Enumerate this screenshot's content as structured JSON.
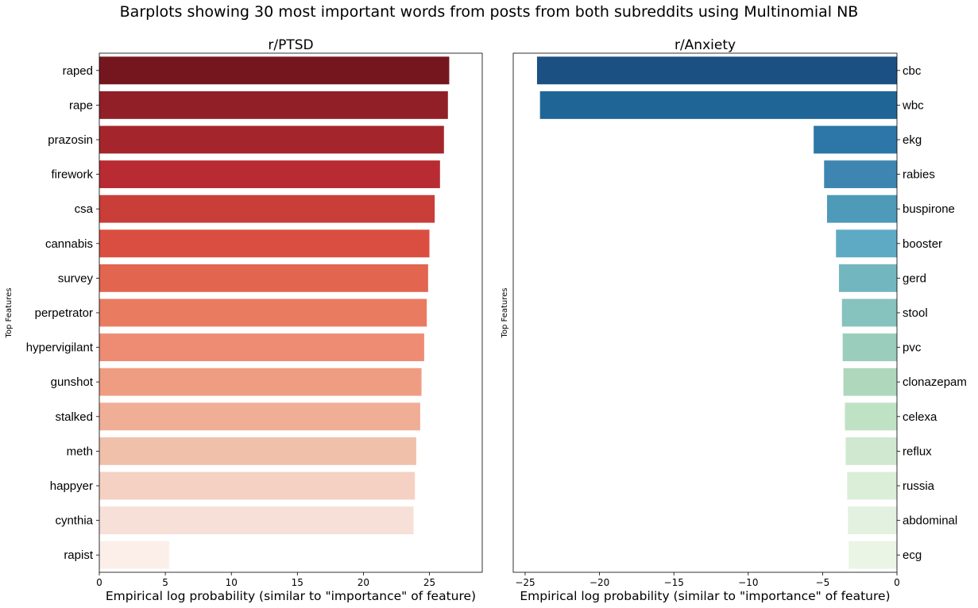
{
  "figure": {
    "suptitle": "Barplots showing 30 most important words from posts from both subreddits using Multinomial NB"
  },
  "chart_data": [
    {
      "type": "bar",
      "orientation": "horizontal",
      "title": "r/PTSD",
      "xlabel": "Empirical log probability (similar to \"importance\" of feature)",
      "ylabel": "Top Features",
      "xlim": [
        0,
        29
      ],
      "xticks": [
        0,
        5,
        10,
        15,
        20,
        25
      ],
      "xtick_labels": [
        "0",
        "5",
        "10",
        "15",
        "20",
        "25"
      ],
      "ytick_side": "left",
      "categories": [
        "raped",
        "rape",
        "prazosin",
        "firework",
        "csa",
        "cannabis",
        "survey",
        "perpetrator",
        "hypervigilant",
        "gunshot",
        "stalked",
        "meth",
        "happyer",
        "cynthia",
        "rapist"
      ],
      "values": [
        26.5,
        26.4,
        26.1,
        25.8,
        25.4,
        25.0,
        24.9,
        24.8,
        24.6,
        24.4,
        24.3,
        24.0,
        23.9,
        23.8,
        5.3
      ],
      "colors": [
        "#75161f",
        "#911f27",
        "#a4262c",
        "#b92b32",
        "#c93e39",
        "#da4e42",
        "#e2654f",
        "#e97b61",
        "#ed8c73",
        "#ef9d82",
        "#f0ae96",
        "#f1c0ab",
        "#f5d1c3",
        "#f7e0d8",
        "#fcefe9"
      ],
      "grid": false
    },
    {
      "type": "bar",
      "orientation": "horizontal",
      "title": "r/Anxiety",
      "xlabel": "Empirical log probability (similar to \"importance\" of feature)",
      "ylabel": "Top Features",
      "xlim": [
        -25.8,
        0
      ],
      "xticks": [
        -25,
        -20,
        -15,
        -10,
        -5,
        0
      ],
      "xtick_labels": [
        "−25",
        "−20",
        "−15",
        "−10",
        "−5",
        "0"
      ],
      "ytick_side": "right",
      "categories": [
        "cbc",
        "wbc",
        "ekg",
        "rabies",
        "buspirone",
        "booster",
        "gerd",
        "stool",
        "pvc",
        "clonazepam",
        "celexa",
        "reflux",
        "russia",
        "abdominal",
        "ecg"
      ],
      "values": [
        -24.2,
        -24.0,
        -5.6,
        -4.9,
        -4.7,
        -4.1,
        -3.9,
        -3.7,
        -3.65,
        -3.6,
        -3.5,
        -3.45,
        -3.35,
        -3.3,
        -3.25
      ],
      "colors": [
        "#1b5082",
        "#1f6697",
        "#2c76a8",
        "#3e86b1",
        "#4d9ab9",
        "#5eaac5",
        "#72b7bf",
        "#86c2be",
        "#9acdbb",
        "#aed7bb",
        "#c0e2c4",
        "#d0e8cf",
        "#dbeed8",
        "#e3f2e0",
        "#ebf5e6"
      ],
      "grid": false
    }
  ]
}
